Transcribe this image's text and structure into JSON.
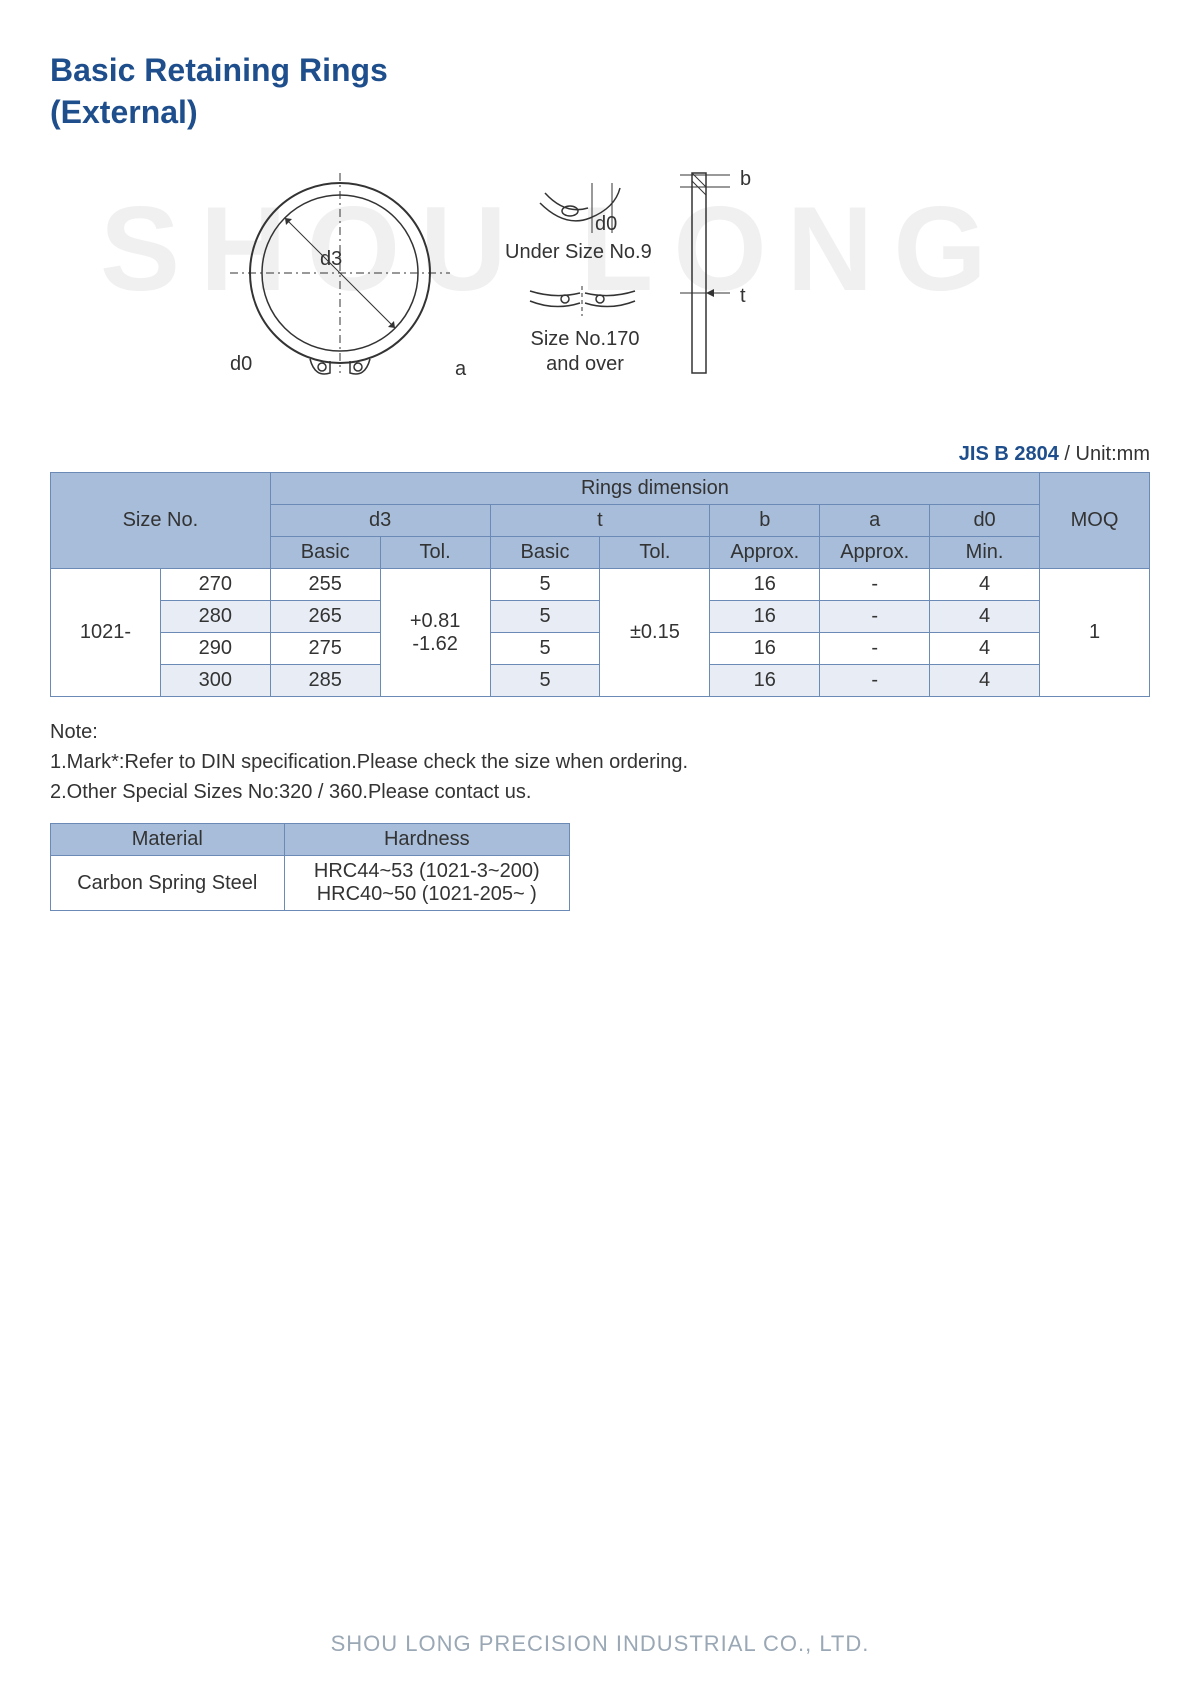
{
  "title_line1": "Basic Retaining Rings",
  "title_line2": "(External)",
  "watermark": "SHOU LONG",
  "diagram": {
    "d3": "d3",
    "d0": "d0",
    "a": "a",
    "b": "b",
    "t": "t",
    "under9": "Under Size No.9",
    "over170_l1": "Size No.170",
    "over170_l2": "and over"
  },
  "spec": {
    "code": "JIS B 2804",
    "unit": " / Unit:mm"
  },
  "table": {
    "headers": {
      "size_no": "Size No.",
      "rings_dim": "Rings dimension",
      "moq": "MOQ",
      "d3": "d3",
      "t": "t",
      "b": "b",
      "a": "a",
      "d0": "d0",
      "basic": "Basic",
      "tol": "Tol.",
      "approx": "Approx.",
      "min": "Min."
    },
    "prefix": "1021-",
    "d3_tol_l1": "+0.81",
    "d3_tol_l2": "-1.62",
    "t_tol": "±0.15",
    "moq_val": "1",
    "rows": [
      {
        "size": "270",
        "d3": "255",
        "t": "5",
        "b": "16",
        "a": "-",
        "d0": "4",
        "shade": false
      },
      {
        "size": "280",
        "d3": "265",
        "t": "5",
        "b": "16",
        "a": "-",
        "d0": "4",
        "shade": true
      },
      {
        "size": "290",
        "d3": "275",
        "t": "5",
        "b": "16",
        "a": "-",
        "d0": "4",
        "shade": false
      },
      {
        "size": "300",
        "d3": "285",
        "t": "5",
        "b": "16",
        "a": "-",
        "d0": "4",
        "shade": true
      }
    ]
  },
  "notes": {
    "hdr": "Note:",
    "n1": "1.Mark*:Refer to DIN specification.Please check the size when ordering.",
    "n2": "2.Other Special Sizes No:320 / 360.Please contact us."
  },
  "mat": {
    "material_h": "Material",
    "hardness_h": "Hardness",
    "material_v": "Carbon Spring Steel",
    "hard_l1": "HRC44~53 (1021-3~200)",
    "hard_l2": "HRC40~50 (1021-205~  )"
  },
  "footer": "SHOU LONG PRECISION INDUSTRIAL CO., LTD.",
  "colors": {
    "title": "#1e4e8c",
    "border": "#6b8ab5",
    "header_bg": "#a7bdd9",
    "shade_bg": "#e8edf5",
    "watermark": "#f0f0f0",
    "footer": "#9aa7b5"
  }
}
